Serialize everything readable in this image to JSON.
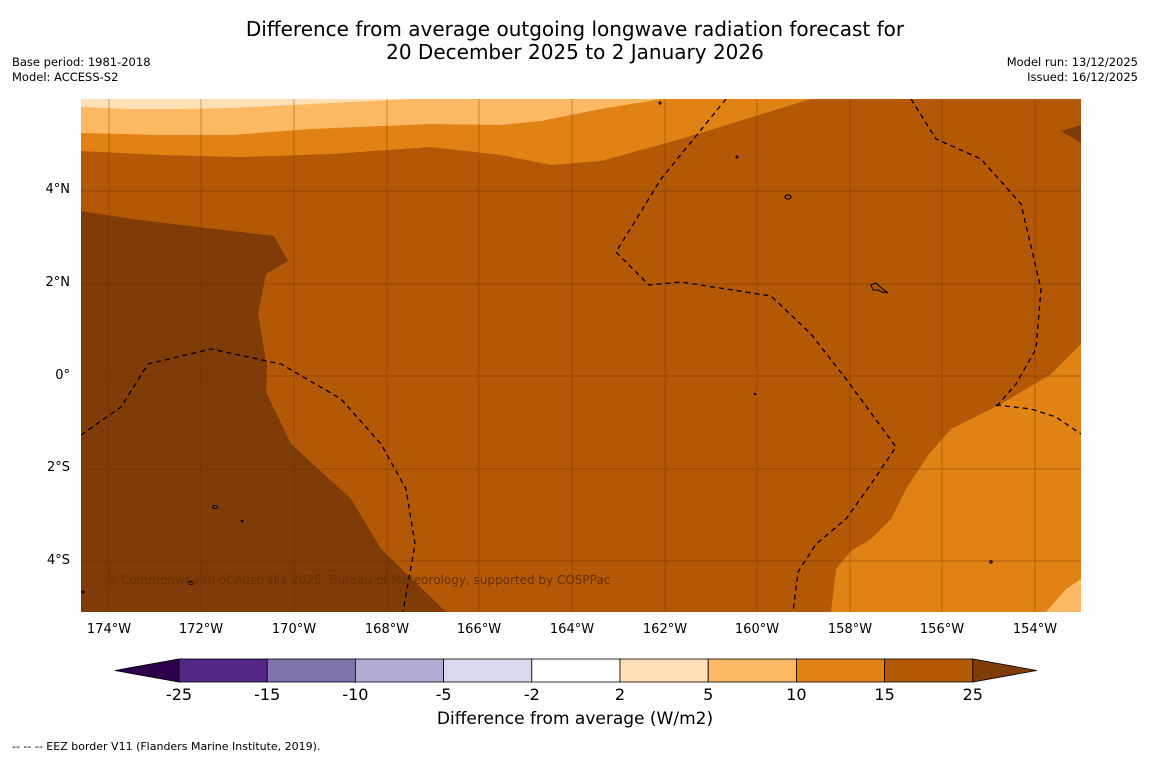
{
  "header": {
    "title_line1": "Difference from average outgoing longwave radiation forecast for",
    "title_line2": "20 December 2025 to 2 January 2026",
    "base_period": "Base period: 1981-2018",
    "model": "Model: ACCESS-S2",
    "model_run": "Model run: 13/12/2025",
    "issued": "Issued: 16/12/2025"
  },
  "map": {
    "copyright": "© Commonwealth of Australia 2025, Bureau of Meteorology, supported by COSPPac",
    "lon_ticks": [
      "174°W",
      "172°W",
      "170°W",
      "168°W",
      "166°W",
      "164°W",
      "162°W",
      "160°W",
      "158°W",
      "156°W",
      "154°W"
    ],
    "lat_ticks": [
      "4°N",
      "2°N",
      "0°",
      "2°S",
      "4°S"
    ],
    "colors": {
      "gt25": "#7f3b08",
      "15_25": "#b35806",
      "10_15": "#e08214",
      "5_10": "#fdb863",
      "2_5": "#fee0b6"
    }
  },
  "colorbar": {
    "labels": [
      "-25",
      "-15",
      "-10",
      "-5",
      "-2",
      "2",
      "5",
      "10",
      "15",
      "25"
    ],
    "colors": [
      "#2d004b",
      "#542788",
      "#8073ac",
      "#b2abd2",
      "#d8daeb",
      "#ffffff",
      "#fee0b6",
      "#fdb863",
      "#e08214",
      "#b35806",
      "#7f3b08"
    ],
    "title": "Difference from average (W/m2)"
  },
  "footnote": "--  --  -- EEZ border V11 (Flanders Marine Institute, 2019)."
}
